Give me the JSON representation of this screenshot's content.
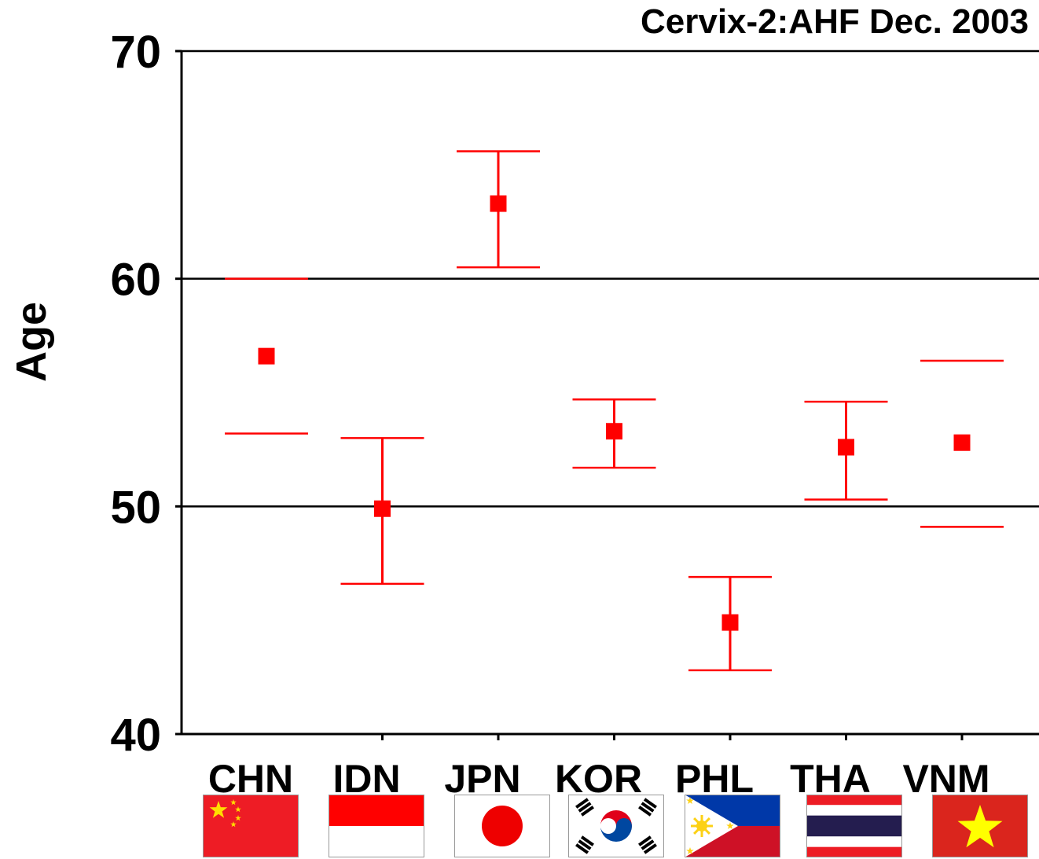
{
  "chart_data": {
    "type": "scatter",
    "title": "Cervix-2:AHF Dec. 2003",
    "xlabel": "",
    "ylabel": "Age",
    "ylim": [
      40,
      70
    ],
    "yticks": [
      40,
      50,
      60,
      70
    ],
    "grid_y_values": [
      50,
      60
    ],
    "categories": [
      "CHN",
      "IDN",
      "JPN",
      "KOR",
      "PHL",
      "THA",
      "VNM"
    ],
    "flags": [
      "china-flag",
      "indonesia-flag",
      "japan-flag",
      "korea-flag",
      "philippines-flag",
      "thailand-flag",
      "vietnam-flag"
    ],
    "series": [
      {
        "color": "#ff0000",
        "marker": "square",
        "values": [
          56.6,
          49.9,
          63.3,
          53.3,
          44.9,
          52.6,
          52.8
        ],
        "lower": [
          53.2,
          46.6,
          60.5,
          51.7,
          42.8,
          50.3,
          49.1
        ],
        "upper": [
          60.0,
          53.0,
          65.6,
          54.7,
          46.9,
          54.6,
          56.4
        ],
        "show_vertical_bar": [
          false,
          true,
          true,
          true,
          true,
          true,
          false
        ]
      }
    ]
  }
}
